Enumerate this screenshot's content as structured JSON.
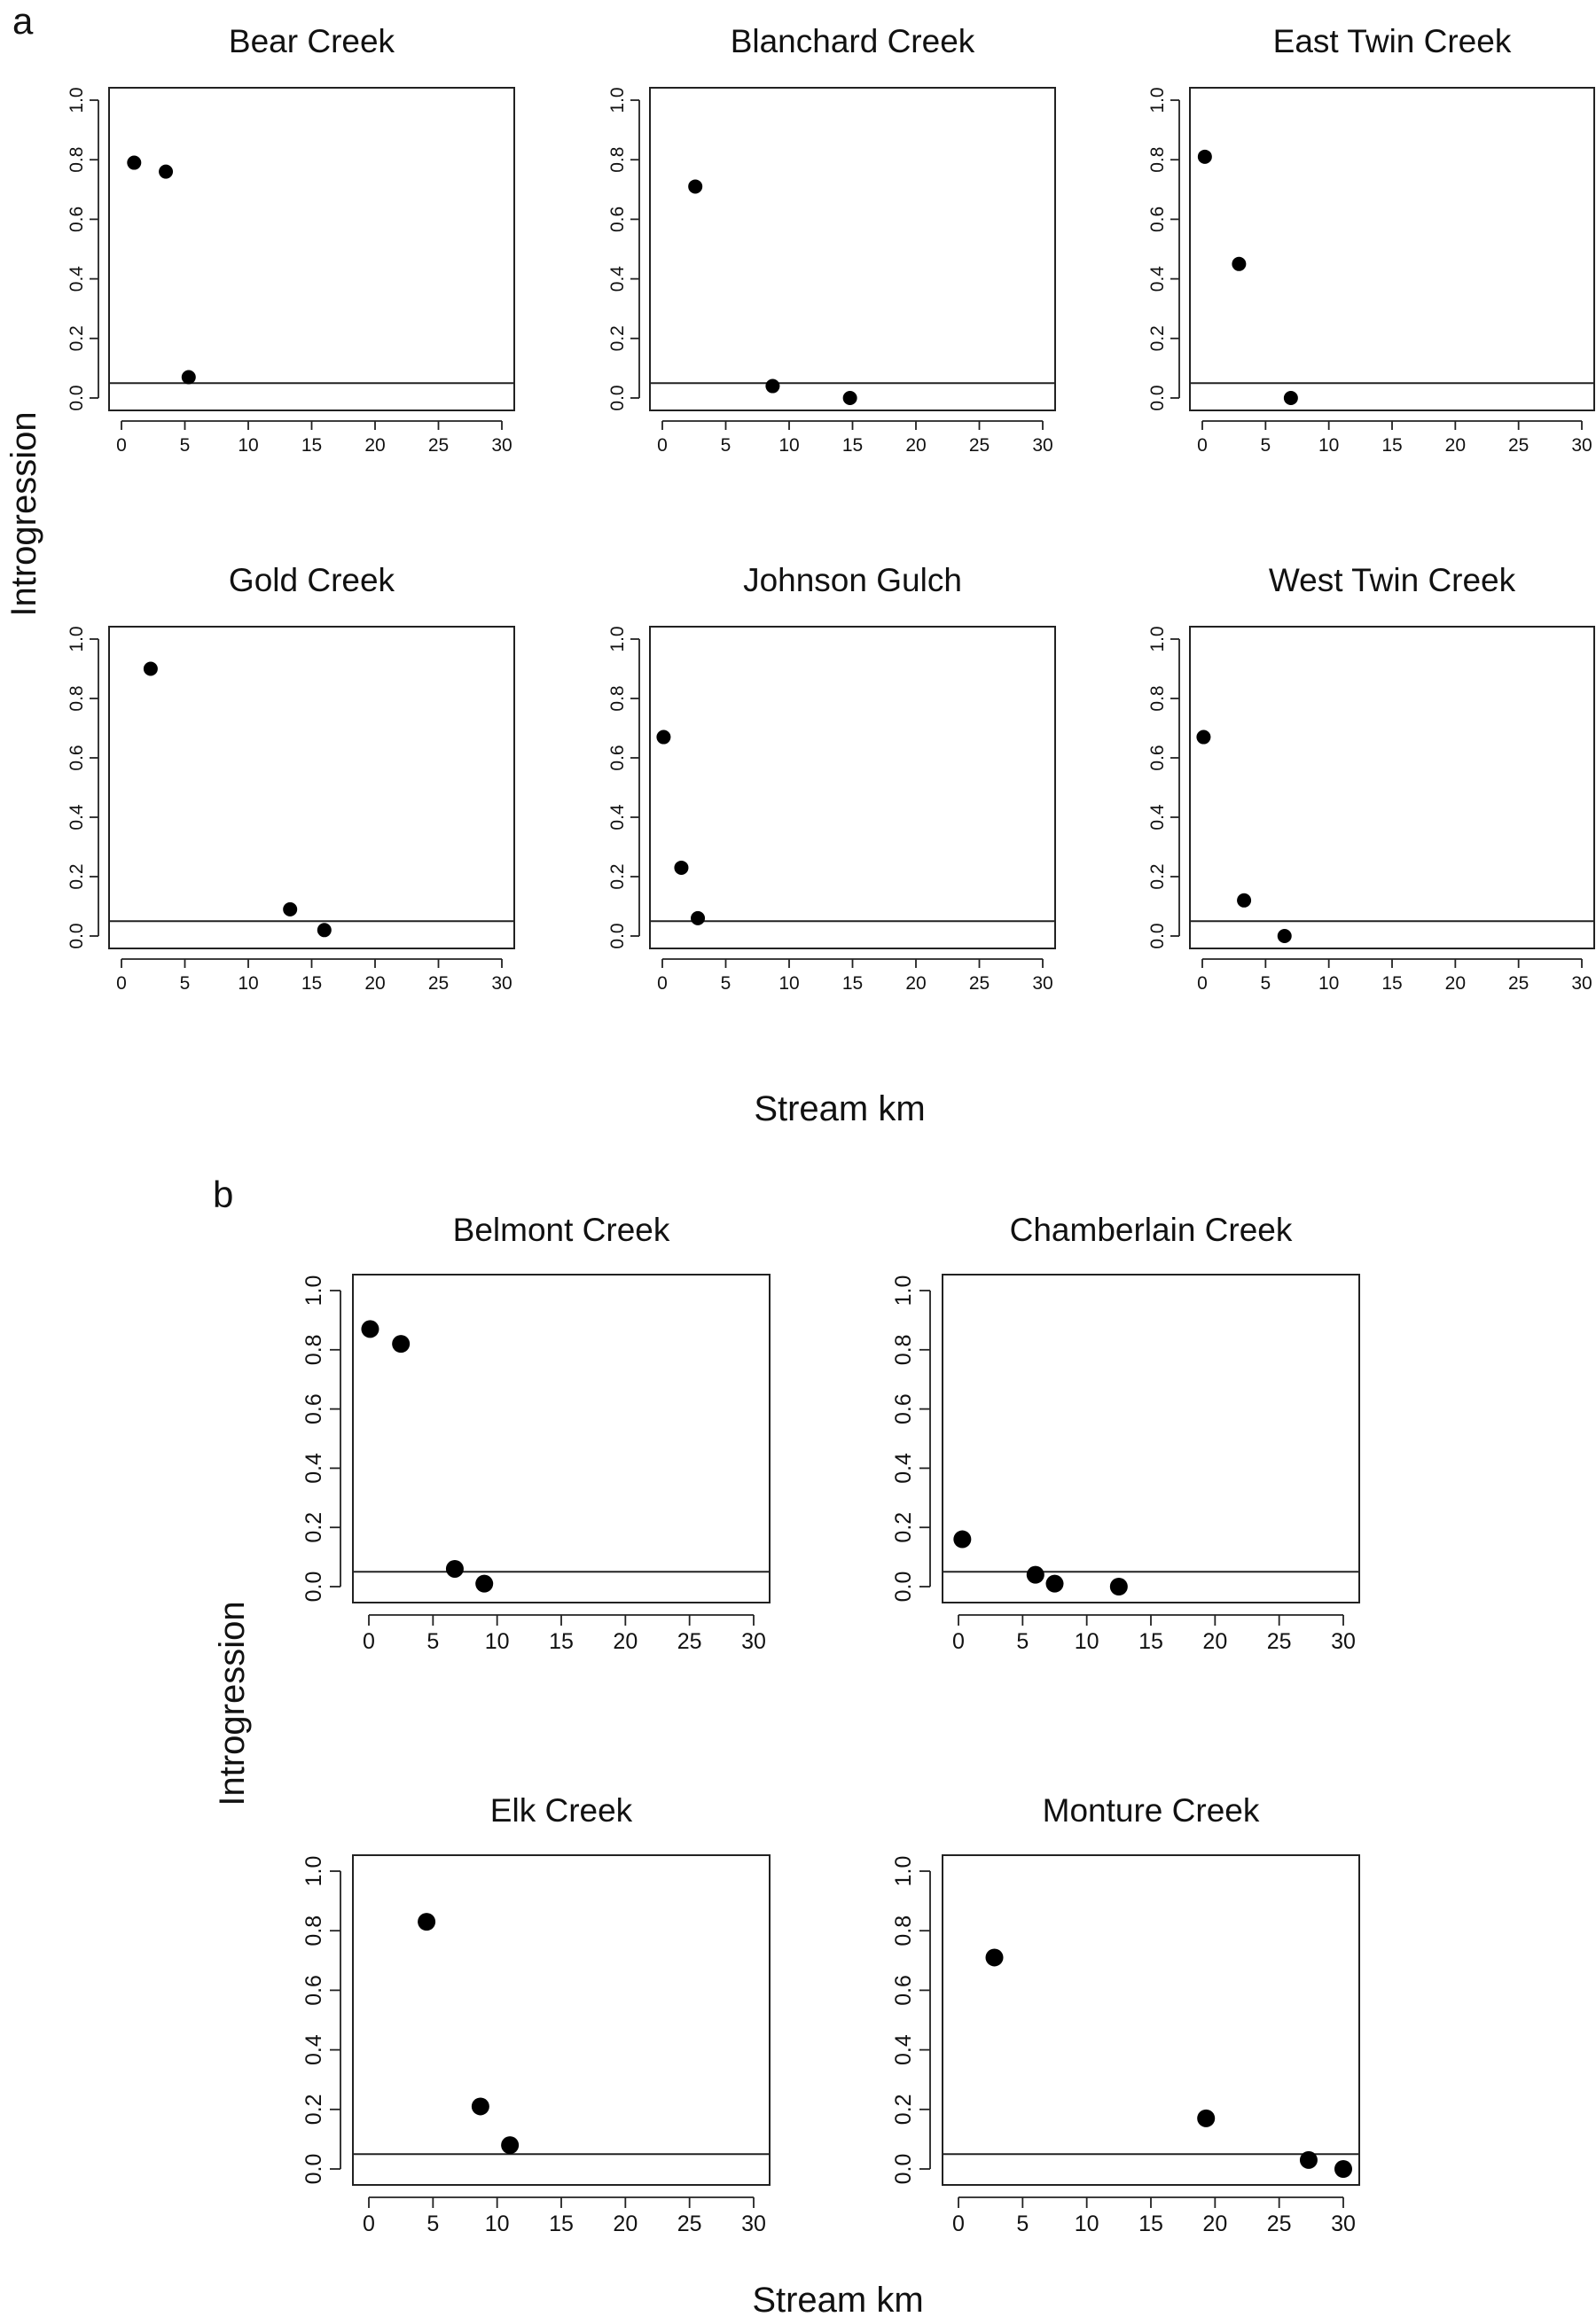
{
  "figure": {
    "part_a_label": "a",
    "part_b_label": "b",
    "part_a_ylabel": "Introgression",
    "part_a_xlabel": "Stream km",
    "part_b_ylabel": "Introgression",
    "part_b_xlabel": "Stream km"
  },
  "chart_data": [
    {
      "type": "scatter",
      "part": "a",
      "title": "Bear Creek",
      "x": [
        1.0,
        3.5,
        5.3
      ],
      "y": [
        0.79,
        0.76,
        0.07
      ],
      "xlim": [
        0,
        30
      ],
      "ylim": [
        0,
        1.0
      ],
      "hline": 0.05,
      "xticks": [
        "0",
        "5",
        "10",
        "15",
        "20",
        "25",
        "30"
      ],
      "yticks": [
        "0.0",
        "0.2",
        "0.4",
        "0.6",
        "0.8",
        "1.0"
      ]
    },
    {
      "type": "scatter",
      "part": "a",
      "title": "Blanchard Creek",
      "x": [
        2.6,
        8.7,
        14.8
      ],
      "y": [
        0.71,
        0.04,
        0.0
      ],
      "xlim": [
        0,
        30
      ],
      "ylim": [
        0,
        1.0
      ],
      "hline": 0.05,
      "xticks": [
        "0",
        "5",
        "10",
        "15",
        "20",
        "25",
        "30"
      ],
      "yticks": [
        "0.0",
        "0.2",
        "0.4",
        "0.6",
        "0.8",
        "1.0"
      ]
    },
    {
      "type": "scatter",
      "part": "a",
      "title": "East Twin Creek",
      "x": [
        0.2,
        2.9,
        7.0
      ],
      "y": [
        0.81,
        0.45,
        0.0
      ],
      "xlim": [
        0,
        30
      ],
      "ylim": [
        0,
        1.0
      ],
      "hline": 0.05,
      "xticks": [
        "0",
        "5",
        "10",
        "15",
        "20",
        "25",
        "30"
      ],
      "yticks": [
        "0.0",
        "0.2",
        "0.4",
        "0.6",
        "0.8",
        "1.0"
      ]
    },
    {
      "type": "scatter",
      "part": "a",
      "title": "Gold Creek",
      "x": [
        2.3,
        13.3,
        16.0
      ],
      "y": [
        0.9,
        0.09,
        0.02
      ],
      "xlim": [
        0,
        30
      ],
      "ylim": [
        0,
        1.0
      ],
      "hline": 0.05,
      "xticks": [
        "0",
        "5",
        "10",
        "15",
        "20",
        "25",
        "30"
      ],
      "yticks": [
        "0.0",
        "0.2",
        "0.4",
        "0.6",
        "0.8",
        "1.0"
      ]
    },
    {
      "type": "scatter",
      "part": "a",
      "title": "Johnson Gulch",
      "x": [
        0.1,
        1.5,
        2.8
      ],
      "y": [
        0.67,
        0.23,
        0.06
      ],
      "xlim": [
        0,
        30
      ],
      "ylim": [
        0,
        1.0
      ],
      "hline": 0.05,
      "xticks": [
        "0",
        "5",
        "10",
        "15",
        "20",
        "25",
        "30"
      ],
      "yticks": [
        "0.0",
        "0.2",
        "0.4",
        "0.6",
        "0.8",
        "1.0"
      ]
    },
    {
      "type": "scatter",
      "part": "a",
      "title": "West Twin Creek",
      "x": [
        0.1,
        3.3,
        6.5
      ],
      "y": [
        0.67,
        0.12,
        0.0
      ],
      "xlim": [
        0,
        30
      ],
      "ylim": [
        0,
        1.0
      ],
      "hline": 0.05,
      "xticks": [
        "0",
        "5",
        "10",
        "15",
        "20",
        "25",
        "30"
      ],
      "yticks": [
        "0.0",
        "0.2",
        "0.4",
        "0.6",
        "0.8",
        "1.0"
      ]
    },
    {
      "type": "scatter",
      "part": "b",
      "title": "Belmont Creek",
      "x": [
        0.1,
        2.5,
        6.7,
        9.0
      ],
      "y": [
        0.87,
        0.82,
        0.06,
        0.01
      ],
      "xlim": [
        0,
        30
      ],
      "ylim": [
        0,
        1.0
      ],
      "hline": 0.05,
      "xticks": [
        "0",
        "5",
        "10",
        "15",
        "20",
        "25",
        "30"
      ],
      "yticks": [
        "0.0",
        "0.2",
        "0.4",
        "0.6",
        "0.8",
        "1.0"
      ]
    },
    {
      "type": "scatter",
      "part": "b",
      "title": "Chamberlain Creek",
      "x": [
        0.3,
        6.0,
        7.5,
        12.5
      ],
      "y": [
        0.16,
        0.04,
        0.01,
        0.0
      ],
      "xlim": [
        0,
        30
      ],
      "ylim": [
        0,
        1.0
      ],
      "hline": 0.05,
      "xticks": [
        "0",
        "5",
        "10",
        "15",
        "20",
        "25",
        "30"
      ],
      "yticks": [
        "0.0",
        "0.2",
        "0.4",
        "0.6",
        "0.8",
        "1.0"
      ]
    },
    {
      "type": "scatter",
      "part": "b",
      "title": "Elk Creek",
      "x": [
        4.5,
        8.7,
        11.0
      ],
      "y": [
        0.83,
        0.21,
        0.08
      ],
      "xlim": [
        0,
        30
      ],
      "ylim": [
        0,
        1.0
      ],
      "hline": 0.05,
      "xticks": [
        "0",
        "5",
        "10",
        "15",
        "20",
        "25",
        "30"
      ],
      "yticks": [
        "0.0",
        "0.2",
        "0.4",
        "0.6",
        "0.8",
        "1.0"
      ]
    },
    {
      "type": "scatter",
      "part": "b",
      "title": "Monture Creek",
      "x": [
        2.8,
        19.3,
        27.3,
        30.0
      ],
      "y": [
        0.71,
        0.17,
        0.03,
        0.0
      ],
      "xlim": [
        0,
        30
      ],
      "ylim": [
        0,
        1.0
      ],
      "hline": 0.05,
      "xticks": [
        "0",
        "5",
        "10",
        "15",
        "20",
        "25",
        "30"
      ],
      "yticks": [
        "0.0",
        "0.2",
        "0.4",
        "0.6",
        "0.8",
        "1.0"
      ]
    }
  ]
}
